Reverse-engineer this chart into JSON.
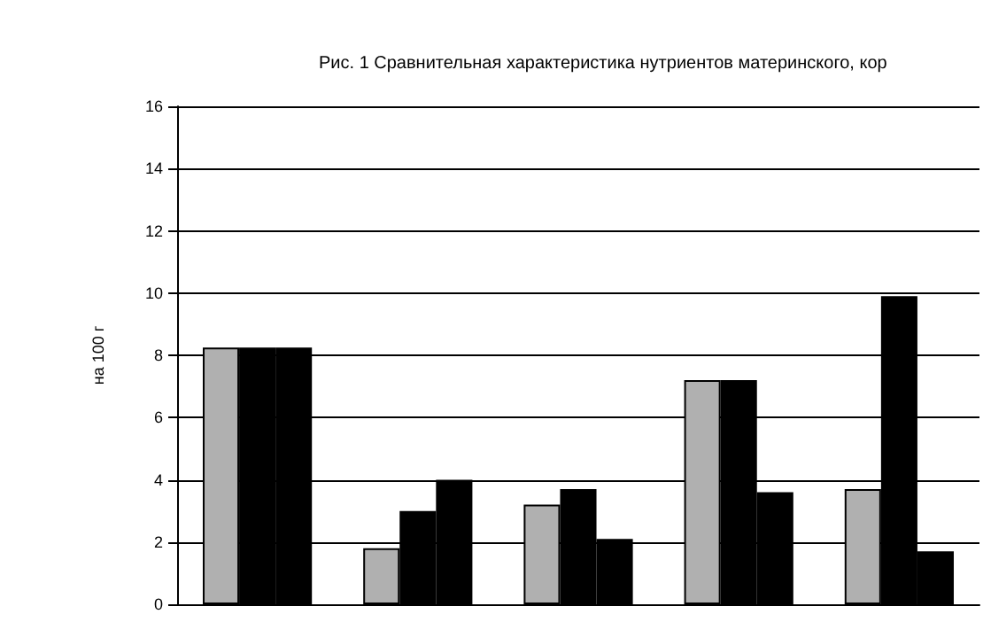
{
  "chart_data": {
    "type": "bar",
    "title": "Рис. 1 Сравнительная характеристика нутриентов материнского, кор",
    "ylabel": "на 100 г",
    "categories": [
      null,
      null,
      null,
      null,
      null
    ],
    "series": [
      {
        "color": "#b0b0b0",
        "values": [
          8.25,
          1.8,
          3.2,
          7.2,
          3.7
        ]
      },
      {
        "color": "#000000",
        "values": [
          8.25,
          3.0,
          3.7,
          7.2,
          9.9
        ]
      },
      {
        "color": "#000000",
        "values": [
          8.25,
          4.0,
          2.1,
          3.6,
          1.7
        ]
      }
    ],
    "ylim": [
      0,
      16
    ],
    "yticks": [
      0,
      2,
      4,
      6,
      8,
      10,
      12,
      14,
      16
    ],
    "grid": "y"
  }
}
